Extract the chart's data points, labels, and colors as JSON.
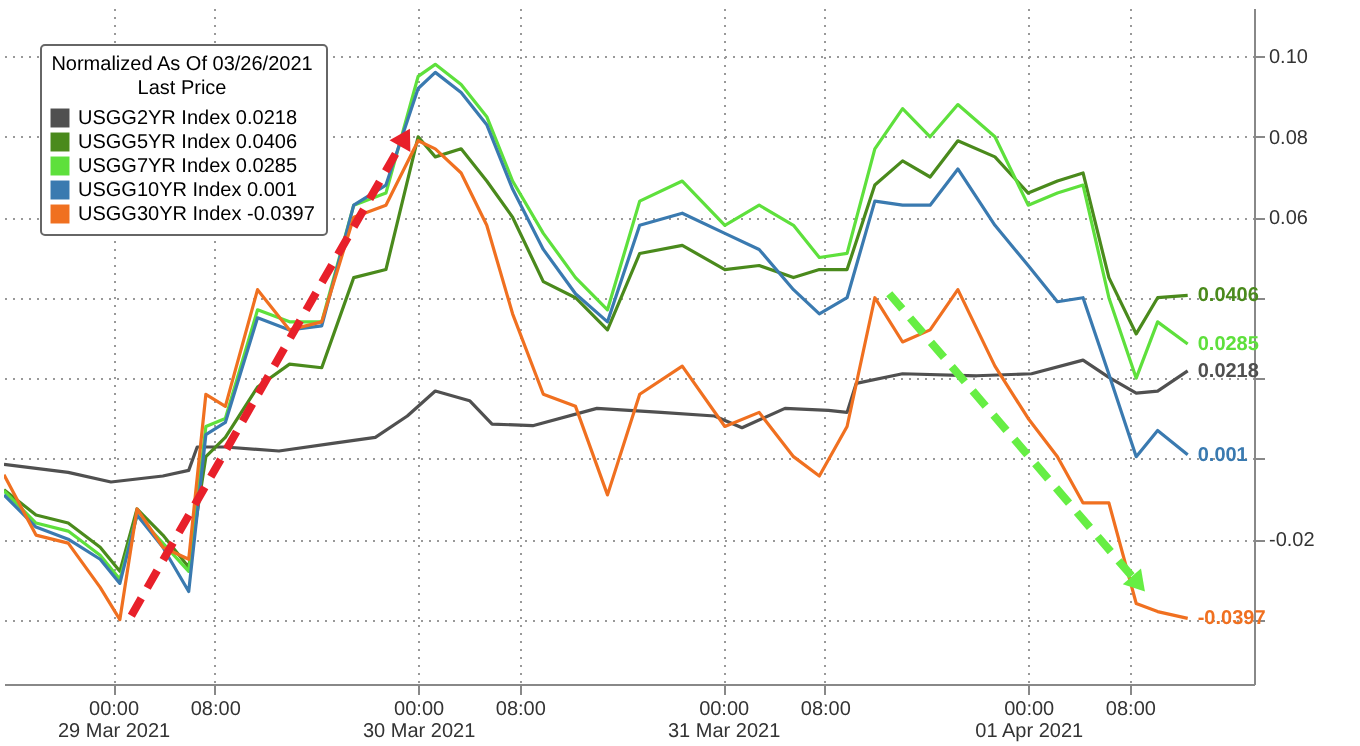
{
  "chart_data": {
    "type": "line",
    "legend_title": "Normalized As Of 03/26/2021\nLast Price",
    "legend": "top left",
    "grid": true,
    "x": [
      "2021-03-28T15:25",
      "2021-03-28T17:56",
      "2021-03-28T20:28",
      "2021-03-28T22:59",
      "2021-03-29T00:32",
      "2021-03-29T01:53",
      "2021-03-29T03:55",
      "2021-03-29T05:57",
      "2021-03-29T07:18",
      "2021-03-29T08:50",
      "2021-03-29T11:22",
      "2021-03-29T13:53",
      "2021-03-29T16:25",
      "2021-03-29T18:56",
      "2021-03-29T21:28",
      "2021-03-30T00:00",
      "2021-03-30T01:21",
      "2021-03-30T03:23",
      "2021-03-30T05:24",
      "2021-03-30T07:26",
      "2021-03-30T09:51",
      "2021-03-30T12:23",
      "2021-03-30T14:54",
      "2021-03-30T17:26",
      "2021-03-30T20:47",
      "2021-03-31T00:08",
      "2021-03-31T02:50",
      "2021-03-31T05:32",
      "2021-03-31T07:34",
      "2021-03-31T09:45",
      "2021-03-31T11:56",
      "2021-03-31T14:07",
      "2021-03-31T16:17",
      "2021-03-31T18:28",
      "2021-03-31T21:23",
      "2021-04-01T00:00",
      "2021-04-01T02:18",
      "2021-04-01T04:19",
      "2021-04-01T06:21",
      "2021-04-01T08:30",
      "2021-04-01T10:11",
      "2021-04-01T12:33"
    ],
    "xlim": [
      "2021-03-28T15:25",
      "2021-04-01T17:46"
    ],
    "xticks": [
      {
        "value": "2021-03-29T00:00",
        "label": "00:00\n29 Mar 2021"
      },
      {
        "value": "2021-03-29T08:00",
        "label": "08:00"
      },
      {
        "value": "2021-03-30T00:00",
        "label": "00:00\n30 Mar 2021"
      },
      {
        "value": "2021-03-30T08:00",
        "label": "08:00"
      },
      {
        "value": "2021-03-31T00:00",
        "label": "00:00\n31 Mar 2021"
      },
      {
        "value": "2021-03-31T08:00",
        "label": "08:00"
      },
      {
        "value": "2021-04-01T00:00",
        "label": "00:00\n01 Apr 2021"
      },
      {
        "value": "2021-04-01T08:00",
        "label": "08:00"
      }
    ],
    "ylim": [
      -0.056,
      0.112
    ],
    "yticks": [
      {
        "value": 0.1,
        "label": "0.10"
      },
      {
        "value": 0.08,
        "label": "0.08"
      },
      {
        "value": 0.06,
        "label": "0.06"
      },
      {
        "value": 0.04,
        "label": null
      },
      {
        "value": 0.02,
        "label": null
      },
      {
        "value": 0,
        "label": null
      },
      {
        "value": -0.02,
        "label": "-0.02"
      },
      {
        "value": -0.04,
        "label": null
      }
    ],
    "series": [
      {
        "name": "USGG2YR Index 0.0218",
        "color": "#505050",
        "x": [
          "2021-03-28T15:25",
          "2021-03-28T20:28",
          "2021-03-28T23:50",
          "2021-03-29T03:55",
          "2021-03-29T05:57",
          "2021-03-29T06:37",
          "2021-03-29T08:50",
          "2021-03-29T13:03",
          "2021-03-29T17:16",
          "2021-03-29T20:38",
          "2021-03-29T23:09",
          "2021-03-30T01:21",
          "2021-03-30T04:03",
          "2021-03-30T05:49",
          "2021-03-30T09:01",
          "2021-03-30T14:04",
          "2021-03-30T19:07",
          "2021-03-30T23:19",
          "2021-03-31T01:29",
          "2021-03-31T04:52",
          "2021-03-31T08:17",
          "2021-03-31T09:45",
          "2021-03-31T10:28",
          "2021-03-31T14:07",
          "2021-03-31T19:56",
          "2021-04-01T00:16",
          "2021-04-01T04:19",
          "2021-04-01T06:21",
          "2021-04-01T08:30",
          "2021-04-01T10:11",
          "2021-04-01T12:33"
        ],
        "values": [
          -0.0014,
          -0.0034,
          -0.0058,
          -0.0043,
          -0.0029,
          0.0029,
          0.0029,
          0.0019,
          0.0038,
          0.0053,
          0.0106,
          0.0168,
          0.0144,
          0.0086,
          0.0082,
          0.0125,
          0.0115,
          0.0106,
          0.0077,
          0.0125,
          0.012,
          0.0115,
          0.0187,
          0.0211,
          0.0206,
          0.0211,
          0.0245,
          0.0202,
          0.0163,
          0.0168,
          0.0218
        ],
        "value_labels": [
          null,
          null,
          null,
          null,
          null,
          null,
          null,
          null,
          null,
          null,
          null,
          null,
          null,
          null,
          null,
          null,
          null,
          null,
          null,
          null,
          null,
          null,
          null,
          null,
          null,
          null,
          null,
          null,
          null,
          null,
          "0.0218"
        ]
      },
      {
        "name": "USGG5YR Index 0.0406",
        "color": "#4a8a1c",
        "values": [
          -0.0077,
          -0.014,
          -0.016,
          -0.022,
          -0.028,
          -0.0125,
          -0.019,
          -0.027,
          0.0005,
          0.0053,
          0.0178,
          0.0235,
          0.0226,
          0.045,
          0.047,
          0.08,
          0.075,
          0.077,
          0.069,
          0.06,
          0.044,
          0.04,
          0.032,
          0.051,
          0.053,
          0.047,
          0.048,
          0.045,
          0.047,
          0.047,
          0.068,
          0.074,
          0.07,
          0.079,
          0.075,
          0.066,
          0.069,
          0.071,
          0.045,
          0.031,
          0.04,
          0.0406
        ],
        "value_labels": [
          null,
          null,
          null,
          null,
          null,
          null,
          null,
          null,
          null,
          null,
          null,
          null,
          null,
          null,
          null,
          null,
          null,
          null,
          null,
          null,
          null,
          null,
          null,
          null,
          null,
          null,
          null,
          null,
          null,
          null,
          null,
          null,
          null,
          null,
          null,
          null,
          null,
          null,
          null,
          null,
          null,
          "0.0406"
        ]
      },
      {
        "name": "USGG7YR Index 0.0285",
        "color": "#5ee03c",
        "values": [
          -0.008,
          -0.016,
          -0.018,
          -0.024,
          -0.03,
          -0.014,
          -0.021,
          -0.028,
          0.008,
          0.01,
          0.037,
          0.034,
          0.034,
          0.063,
          0.066,
          0.095,
          0.098,
          0.093,
          0.085,
          0.069,
          0.056,
          0.045,
          0.037,
          0.064,
          0.069,
          0.058,
          0.063,
          0.058,
          0.05,
          0.051,
          0.077,
          0.087,
          0.08,
          0.088,
          0.08,
          0.063,
          0.066,
          0.068,
          0.04,
          0.02,
          0.034,
          0.0285
        ],
        "value_labels": [
          null,
          null,
          null,
          null,
          null,
          null,
          null,
          null,
          null,
          null,
          null,
          null,
          null,
          null,
          null,
          null,
          null,
          null,
          null,
          null,
          null,
          null,
          null,
          null,
          null,
          null,
          null,
          null,
          null,
          null,
          null,
          null,
          null,
          null,
          null,
          null,
          null,
          null,
          null,
          null,
          null,
          "0.0285"
        ]
      },
      {
        "name": "USGG10YR Index 0.001",
        "color": "#3a7ab0",
        "values": [
          -0.009,
          -0.017,
          -0.02,
          -0.025,
          -0.031,
          -0.014,
          -0.022,
          -0.033,
          0.006,
          0.009,
          0.035,
          0.032,
          0.033,
          0.063,
          0.068,
          0.092,
          0.096,
          0.091,
          0.083,
          0.067,
          0.052,
          0.041,
          0.034,
          0.058,
          0.061,
          0.056,
          0.052,
          0.042,
          0.036,
          0.04,
          0.064,
          0.063,
          0.063,
          0.072,
          0.058,
          0.048,
          0.039,
          0.04,
          0.021,
          0.0005,
          0.007,
          0.001
        ],
        "value_labels": [
          null,
          null,
          null,
          null,
          null,
          null,
          null,
          null,
          null,
          null,
          null,
          null,
          null,
          null,
          null,
          null,
          null,
          null,
          null,
          null,
          null,
          null,
          null,
          null,
          null,
          null,
          null,
          null,
          null,
          null,
          null,
          null,
          null,
          null,
          null,
          null,
          null,
          null,
          null,
          null,
          null,
          "0.001"
        ]
      },
      {
        "name": "USGG30YR Index -0.0397",
        "color": "#f07020",
        "values": [
          -0.004,
          -0.019,
          -0.021,
          -0.032,
          -0.04,
          -0.0125,
          -0.022,
          -0.025,
          0.016,
          0.013,
          0.042,
          0.032,
          0.034,
          0.06,
          0.063,
          0.079,
          0.077,
          0.071,
          0.058,
          0.036,
          0.016,
          0.013,
          -0.009,
          0.016,
          0.023,
          0.008,
          0.0115,
          0.0005,
          -0.0043,
          0.008,
          0.04,
          0.029,
          0.032,
          0.042,
          0.023,
          0.01,
          0.0005,
          -0.011,
          -0.011,
          -0.036,
          -0.038,
          -0.0397
        ],
        "value_labels": [
          null,
          null,
          null,
          null,
          null,
          null,
          null,
          null,
          null,
          null,
          null,
          null,
          null,
          null,
          null,
          null,
          null,
          null,
          null,
          null,
          null,
          null,
          null,
          null,
          null,
          null,
          null,
          null,
          null,
          null,
          null,
          null,
          null,
          null,
          null,
          null,
          null,
          null,
          null,
          null,
          null,
          "-0.0397"
        ]
      }
    ]
  }
}
